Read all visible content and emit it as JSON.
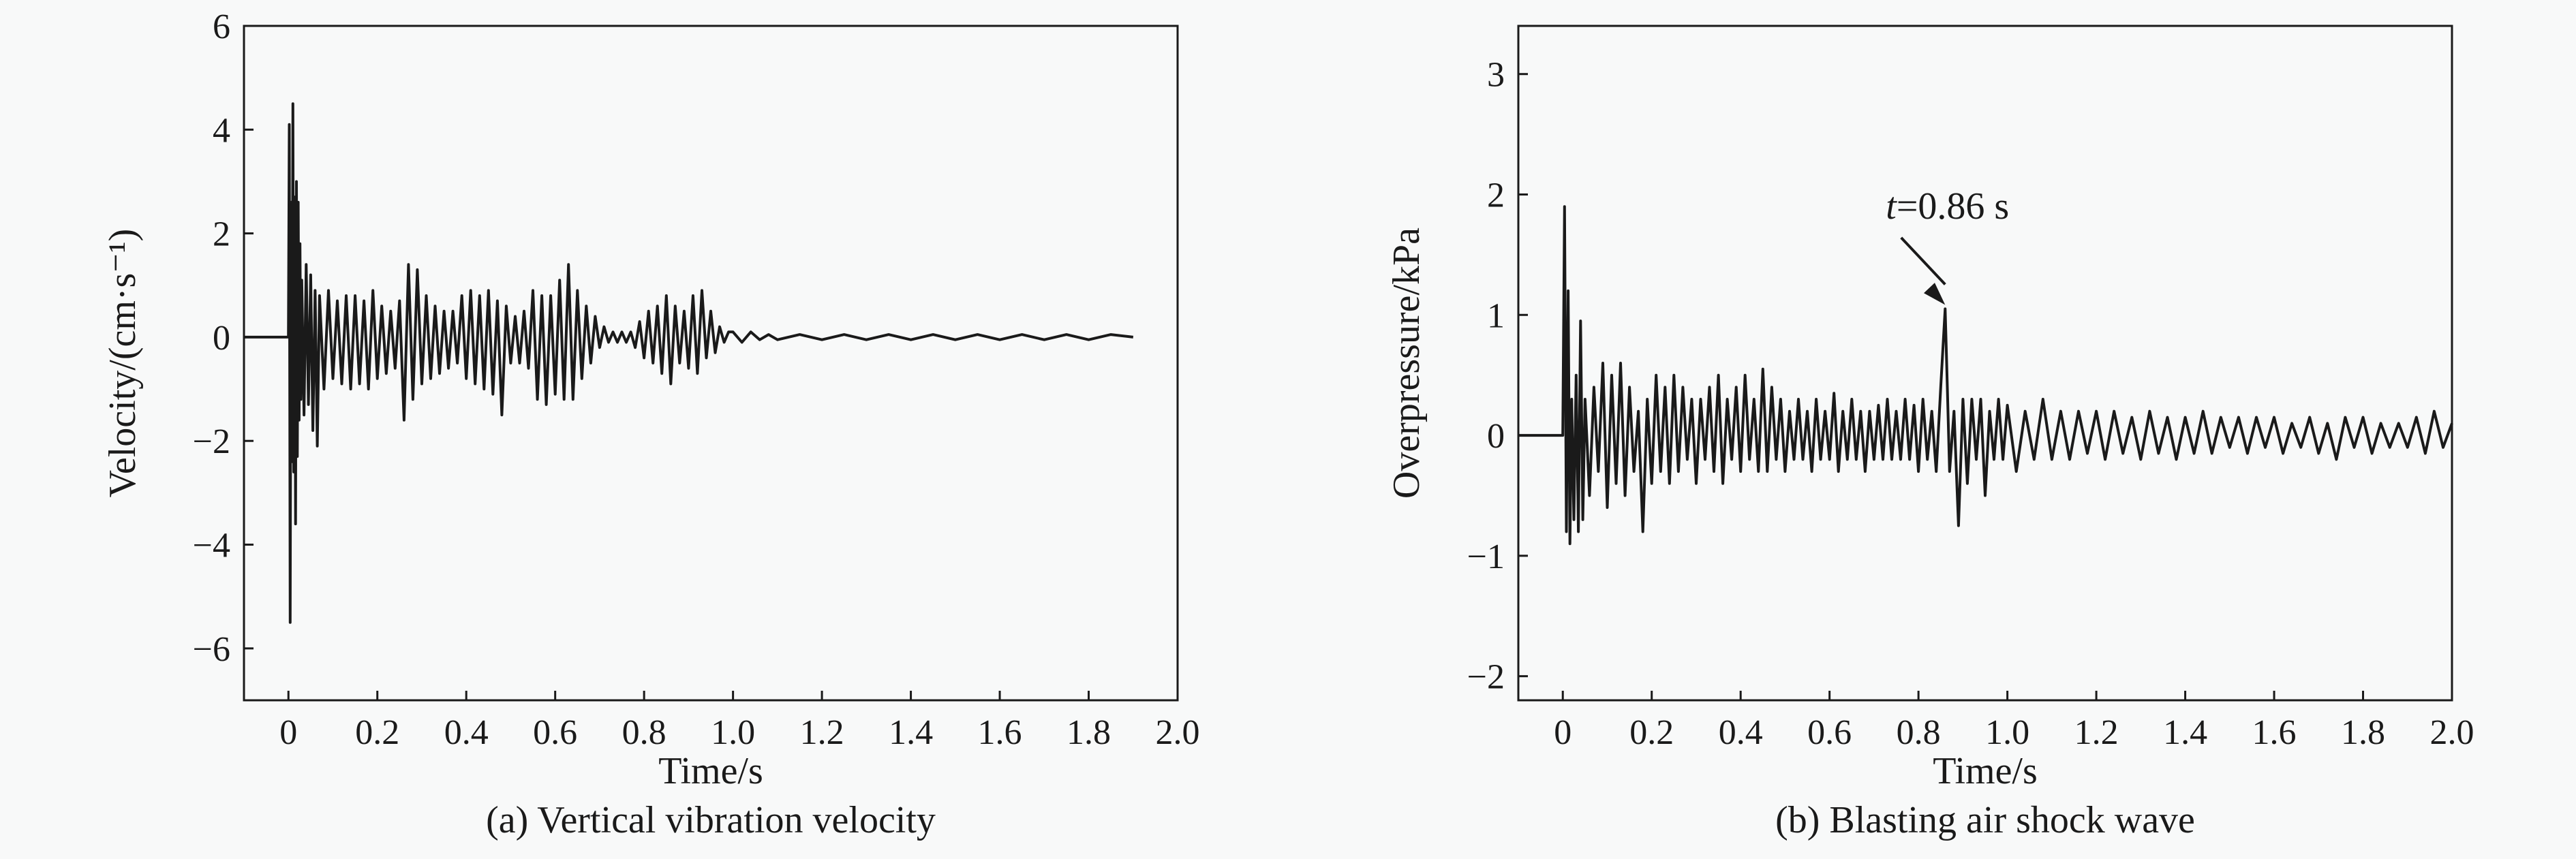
{
  "chart_data": [
    {
      "type": "line",
      "caption": "(a) Vertical vibration velocity",
      "xlabel": "Time/s",
      "ylabel": "Velocity/(cm·s⁻¹)",
      "xlim": [
        -0.1,
        2.0
      ],
      "ylim": [
        -7,
        6
      ],
      "xticks": [
        0,
        0.2,
        0.4,
        0.6,
        0.8,
        1.0,
        1.2,
        1.4,
        1.6,
        1.8,
        2.0
      ],
      "xtick_labels": [
        "0",
        "0.2",
        "0.4",
        "0.6",
        "0.8",
        "1.0",
        "1.2",
        "1.4",
        "1.6",
        "1.8",
        "2.0"
      ],
      "yticks": [
        6,
        4,
        2,
        0,
        -2,
        -4,
        -6
      ],
      "ytick_labels": [
        "6",
        "4",
        "2",
        "0",
        "−2",
        "−4",
        "−6"
      ],
      "grid": false,
      "series": [
        {
          "x": [
            -0.1,
            -0.05,
            0.0,
            0.002,
            0.004,
            0.006,
            0.008,
            0.01,
            0.012,
            0.014,
            0.016,
            0.018,
            0.02,
            0.022,
            0.024,
            0.026,
            0.028,
            0.03,
            0.035,
            0.04,
            0.045,
            0.05,
            0.055,
            0.06,
            0.065,
            0.07,
            0.08,
            0.09,
            0.1,
            0.11,
            0.12,
            0.13,
            0.14,
            0.15,
            0.16,
            0.17,
            0.18,
            0.19,
            0.2,
            0.21,
            0.22,
            0.23,
            0.24,
            0.25,
            0.26,
            0.27,
            0.28,
            0.29,
            0.3,
            0.31,
            0.32,
            0.33,
            0.34,
            0.35,
            0.36,
            0.37,
            0.38,
            0.39,
            0.4,
            0.41,
            0.42,
            0.43,
            0.44,
            0.45,
            0.46,
            0.47,
            0.48,
            0.49,
            0.5,
            0.51,
            0.52,
            0.53,
            0.54,
            0.55,
            0.56,
            0.57,
            0.58,
            0.59,
            0.6,
            0.61,
            0.62,
            0.63,
            0.64,
            0.65,
            0.66,
            0.67,
            0.68,
            0.69,
            0.7,
            0.71,
            0.72,
            0.73,
            0.74,
            0.75,
            0.76,
            0.77,
            0.78,
            0.79,
            0.8,
            0.81,
            0.82,
            0.83,
            0.84,
            0.85,
            0.86,
            0.87,
            0.88,
            0.89,
            0.9,
            0.91,
            0.92,
            0.93,
            0.94,
            0.95,
            0.96,
            0.97,
            0.98,
            0.99,
            1.0,
            1.02,
            1.04,
            1.06,
            1.08,
            1.1,
            1.15,
            1.2,
            1.25,
            1.3,
            1.35,
            1.4,
            1.45,
            1.5,
            1.55,
            1.6,
            1.65,
            1.7,
            1.75,
            1.8,
            1.85,
            1.9
          ],
          "y": [
            0.0,
            0.0,
            0.0,
            4.1,
            -5.5,
            2.6,
            -2.4,
            4.5,
            -2.6,
            2.7,
            -3.6,
            3.0,
            -2.3,
            2.6,
            -1.6,
            1.8,
            -1.2,
            1.1,
            -1.5,
            1.4,
            -1.3,
            1.2,
            -1.8,
            0.9,
            -2.1,
            0.8,
            -1.0,
            0.9,
            -0.8,
            0.7,
            -0.9,
            0.8,
            -1.0,
            0.8,
            -0.9,
            0.7,
            -1.0,
            0.9,
            -0.8,
            0.6,
            -0.7,
            0.5,
            -0.6,
            0.7,
            -1.6,
            1.4,
            -1.2,
            1.3,
            -0.9,
            0.8,
            -0.8,
            0.6,
            -0.7,
            0.5,
            -0.6,
            0.5,
            -0.5,
            0.8,
            -0.8,
            0.9,
            -0.9,
            0.8,
            -1.0,
            0.9,
            -1.1,
            0.7,
            -1.5,
            0.6,
            -0.5,
            0.4,
            -0.5,
            0.5,
            -0.6,
            0.9,
            -1.2,
            0.8,
            -1.3,
            0.8,
            -1.1,
            1.1,
            -1.2,
            1.4,
            -1.2,
            0.9,
            -0.8,
            0.6,
            -0.5,
            0.4,
            -0.2,
            0.2,
            -0.1,
            0.1,
            -0.1,
            0.1,
            -0.1,
            0.1,
            -0.2,
            0.3,
            -0.4,
            0.5,
            -0.5,
            0.6,
            -0.7,
            0.8,
            -0.9,
            0.6,
            -0.5,
            0.5,
            -0.6,
            0.8,
            -0.7,
            0.9,
            -0.4,
            0.5,
            -0.3,
            0.2,
            -0.1,
            0.1,
            0.1,
            -0.1,
            0.1,
            -0.05,
            0.05,
            -0.05,
            0.05,
            -0.05,
            0.05,
            -0.05,
            0.05,
            -0.05,
            0.05,
            -0.05,
            0.05,
            -0.05,
            0.05,
            -0.05,
            0.05,
            -0.05,
            0.05,
            0.0
          ]
        }
      ]
    },
    {
      "type": "line",
      "caption": "(b) Blasting air shock wave",
      "xlabel": "Time/s",
      "ylabel": "Overpressure/kPa",
      "xlim": [
        -0.1,
        2.0
      ],
      "ylim": [
        -2.2,
        3.4
      ],
      "xticks": [
        0,
        0.2,
        0.4,
        0.6,
        0.8,
        1.0,
        1.2,
        1.4,
        1.6,
        1.8,
        2.0
      ],
      "xtick_labels": [
        "0",
        "0.2",
        "0.4",
        "0.6",
        "0.8",
        "1.0",
        "1.2",
        "1.4",
        "1.6",
        "1.8",
        "2.0"
      ],
      "yticks": [
        3,
        2,
        1,
        0,
        -1,
        -2
      ],
      "ytick_labels": [
        "3",
        "2",
        "1",
        "0",
        "−1",
        "−2"
      ],
      "grid": false,
      "annotation": {
        "text_italic": "t",
        "text": "=0.86 s",
        "x": 0.86,
        "y": 1.05,
        "label_x": 0.85,
        "label_y": 1.8
      },
      "series": [
        {
          "x": [
            -0.1,
            -0.05,
            0.0,
            0.004,
            0.008,
            0.012,
            0.016,
            0.02,
            0.025,
            0.03,
            0.035,
            0.04,
            0.045,
            0.05,
            0.06,
            0.07,
            0.08,
            0.09,
            0.1,
            0.11,
            0.12,
            0.13,
            0.14,
            0.15,
            0.16,
            0.17,
            0.18,
            0.19,
            0.2,
            0.21,
            0.22,
            0.23,
            0.24,
            0.25,
            0.26,
            0.27,
            0.28,
            0.29,
            0.3,
            0.31,
            0.32,
            0.33,
            0.34,
            0.35,
            0.36,
            0.37,
            0.38,
            0.39,
            0.4,
            0.41,
            0.42,
            0.43,
            0.44,
            0.45,
            0.46,
            0.47,
            0.48,
            0.49,
            0.5,
            0.51,
            0.52,
            0.53,
            0.54,
            0.55,
            0.56,
            0.57,
            0.58,
            0.59,
            0.6,
            0.61,
            0.62,
            0.63,
            0.64,
            0.65,
            0.66,
            0.67,
            0.68,
            0.69,
            0.7,
            0.71,
            0.72,
            0.73,
            0.74,
            0.75,
            0.76,
            0.77,
            0.78,
            0.79,
            0.8,
            0.81,
            0.82,
            0.83,
            0.84,
            0.85,
            0.86,
            0.865,
            0.87,
            0.88,
            0.89,
            0.9,
            0.91,
            0.92,
            0.93,
            0.94,
            0.95,
            0.96,
            0.97,
            0.98,
            0.99,
            1.0,
            1.02,
            1.04,
            1.06,
            1.08,
            1.1,
            1.12,
            1.14,
            1.16,
            1.18,
            1.2,
            1.22,
            1.24,
            1.26,
            1.28,
            1.3,
            1.32,
            1.34,
            1.36,
            1.38,
            1.4,
            1.42,
            1.44,
            1.46,
            1.48,
            1.5,
            1.52,
            1.54,
            1.56,
            1.58,
            1.6,
            1.62,
            1.64,
            1.66,
            1.68,
            1.7,
            1.72,
            1.74,
            1.76,
            1.78,
            1.8,
            1.82,
            1.84,
            1.86,
            1.88,
            1.9,
            1.92,
            1.94,
            1.96,
            1.98,
            2.0
          ],
          "y": [
            0.0,
            0.0,
            0.0,
            1.9,
            -0.8,
            1.2,
            -0.9,
            0.3,
            -0.7,
            0.5,
            -0.8,
            0.95,
            -0.7,
            0.3,
            -0.5,
            0.4,
            -0.3,
            0.6,
            -0.6,
            0.5,
            -0.4,
            0.6,
            -0.5,
            0.4,
            -0.3,
            0.2,
            -0.8,
            0.3,
            -0.4,
            0.5,
            -0.3,
            0.4,
            -0.4,
            0.5,
            -0.3,
            0.4,
            -0.2,
            0.3,
            -0.4,
            0.3,
            -0.2,
            0.4,
            -0.3,
            0.5,
            -0.4,
            0.3,
            -0.2,
            0.4,
            -0.3,
            0.5,
            -0.2,
            0.3,
            -0.3,
            0.55,
            -0.3,
            0.4,
            -0.2,
            0.3,
            -0.3,
            0.2,
            -0.2,
            0.3,
            -0.2,
            0.2,
            -0.3,
            0.3,
            -0.2,
            0.2,
            -0.2,
            0.35,
            -0.3,
            0.2,
            -0.2,
            0.3,
            -0.2,
            0.2,
            -0.3,
            0.2,
            -0.2,
            0.25,
            -0.2,
            0.3,
            -0.2,
            0.2,
            -0.2,
            0.3,
            -0.2,
            0.25,
            -0.3,
            0.3,
            -0.2,
            0.2,
            -0.3,
            0.4,
            1.05,
            0.4,
            -0.3,
            0.2,
            -0.75,
            0.3,
            -0.4,
            0.3,
            -0.2,
            0.3,
            -0.5,
            0.2,
            -0.2,
            0.3,
            -0.2,
            0.25,
            -0.3,
            0.2,
            -0.2,
            0.3,
            -0.2,
            0.2,
            -0.2,
            0.2,
            -0.15,
            0.2,
            -0.2,
            0.2,
            -0.15,
            0.15,
            -0.2,
            0.2,
            -0.15,
            0.15,
            -0.2,
            0.15,
            -0.15,
            0.2,
            -0.15,
            0.15,
            -0.1,
            0.15,
            -0.15,
            0.15,
            -0.1,
            0.15,
            -0.15,
            0.1,
            -0.1,
            0.15,
            -0.15,
            0.1,
            -0.2,
            0.15,
            -0.1,
            0.15,
            -0.15,
            0.1,
            -0.1,
            0.1,
            -0.1,
            0.15,
            -0.15,
            0.2,
            -0.1,
            0.1
          ]
        }
      ]
    }
  ]
}
